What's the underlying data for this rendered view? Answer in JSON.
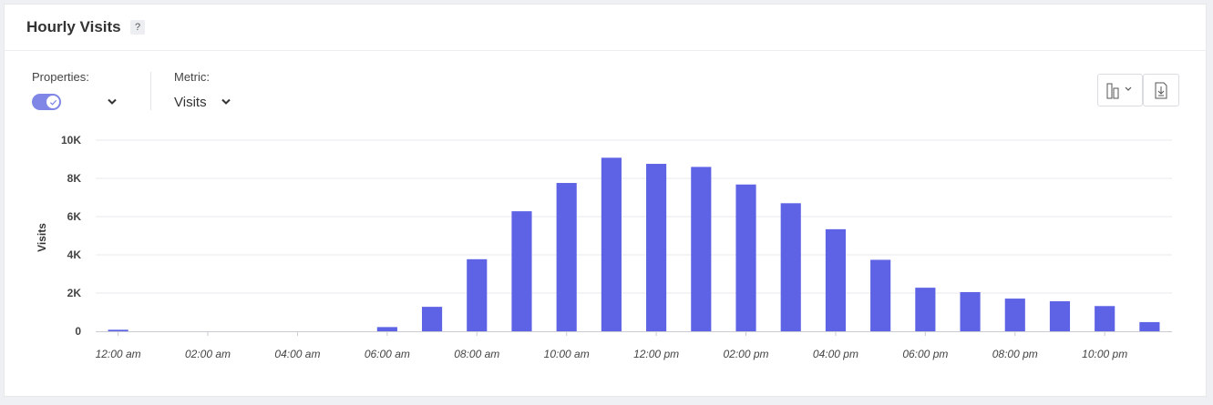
{
  "header": {
    "title": "Hourly Visits",
    "help_label": "?"
  },
  "controls": {
    "properties_label": "Properties:",
    "metric_label": "Metric:",
    "metric_value": "Visits",
    "icons": [
      "toggle-switch",
      "chevron-down-icon",
      "bar-chart-type-icon",
      "download-icon"
    ]
  },
  "colors": {
    "bar": "#5d63e4",
    "toggle": "#7f86e6"
  },
  "chart_data": {
    "type": "bar",
    "ylabel": "Visits",
    "ylim": [
      0,
      10000
    ],
    "yticks": [
      {
        "value": 0,
        "label": "0"
      },
      {
        "value": 2000,
        "label": "2K"
      },
      {
        "value": 4000,
        "label": "4K"
      },
      {
        "value": 6000,
        "label": "6K"
      },
      {
        "value": 8000,
        "label": "8K"
      },
      {
        "value": 10000,
        "label": "10K"
      }
    ],
    "grid": true,
    "categories": [
      "12:00 am",
      "01:00 am",
      "02:00 am",
      "03:00 am",
      "04:00 am",
      "05:00 am",
      "06:00 am",
      "07:00 am",
      "08:00 am",
      "09:00 am",
      "10:00 am",
      "11:00 am",
      "12:00 pm",
      "01:00 pm",
      "02:00 pm",
      "03:00 pm",
      "04:00 pm",
      "05:00 pm",
      "06:00 pm",
      "07:00 pm",
      "08:00 pm",
      "09:00 pm",
      "10:00 pm",
      "11:00 pm"
    ],
    "tick_labels": [
      "12:00 am",
      "02:00 am",
      "04:00 am",
      "06:00 am",
      "08:00 am",
      "10:00 am",
      "12:00 pm",
      "02:00 pm",
      "04:00 pm",
      "06:00 pm",
      "08:00 pm",
      "10:00 pm"
    ],
    "values": [
      80,
      0,
      0,
      0,
      0,
      0,
      220,
      1280,
      3770,
      6280,
      7760,
      9080,
      8760,
      8600,
      7680,
      6700,
      5340,
      3740,
      2280,
      2050,
      1710,
      1570,
      1320,
      480
    ]
  }
}
